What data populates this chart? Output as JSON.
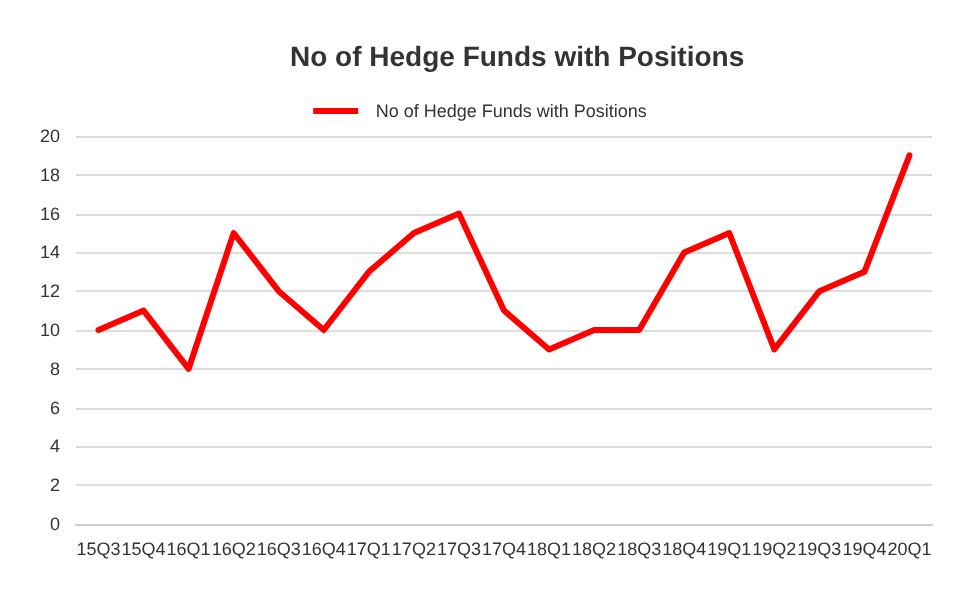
{
  "chart_data": {
    "type": "line",
    "title": "No of Hedge Funds with Positions",
    "categories": [
      "15Q3",
      "15Q4",
      "16Q1",
      "16Q2",
      "16Q3",
      "16Q4",
      "17Q1",
      "17Q2",
      "17Q3",
      "17Q4",
      "18Q1",
      "18Q2",
      "18Q3",
      "18Q4",
      "19Q1",
      "19Q2",
      "19Q3",
      "19Q4",
      "20Q1"
    ],
    "series": [
      {
        "name": "No of Hedge Funds with Positions",
        "color": "#ff0000",
        "values": [
          10,
          11,
          8,
          15,
          12,
          10,
          13,
          15,
          16,
          11,
          9,
          10,
          10,
          14,
          15,
          9,
          12,
          13,
          19
        ]
      }
    ],
    "ylim": [
      0,
      20
    ],
    "yticks": [
      0,
      2,
      4,
      6,
      8,
      10,
      12,
      14,
      16,
      18,
      20
    ],
    "grid": "y",
    "legend": "top",
    "marker": "none",
    "line_style": "solid"
  }
}
